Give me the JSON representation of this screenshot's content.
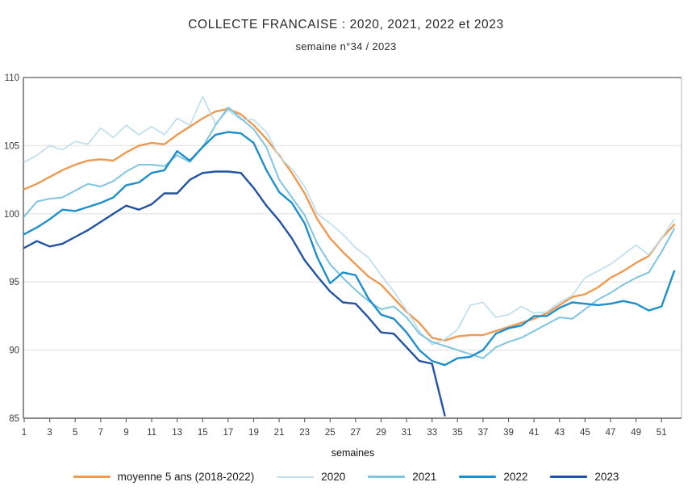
{
  "title": "COLLECTE FRANCAISE : 2020, 2021, 2022 et 2023",
  "subtitle": "semaine n°34 / 2023",
  "colors": {
    "grid": "#e7e7e5",
    "frame_dark": "#606060",
    "frame_light": "#b5b5b3",
    "axis_text": "#3c3c3c",
    "xlabel_text": "#111111"
  },
  "chart_data": {
    "type": "line",
    "title": "COLLECTE FRANCAISE : 2020, 2021, 2022 et 2023",
    "subtitle": "semaine n°34 / 2023",
    "xlabel": "semaines",
    "ylabel": "",
    "xlim": [
      1,
      52
    ],
    "ylim": [
      85,
      110
    ],
    "y_ticks": [
      85,
      90,
      95,
      100,
      105,
      110
    ],
    "x_ticks": [
      1,
      3,
      5,
      7,
      9,
      11,
      13,
      15,
      17,
      19,
      21,
      23,
      25,
      27,
      29,
      31,
      33,
      35,
      37,
      39,
      41,
      43,
      45,
      47,
      49,
      51
    ],
    "grid": true,
    "legend_position": "bottom",
    "series": [
      {
        "name": "moyenne 5 ans (2018-2022)",
        "color": "#ED9B52",
        "width": 2.4,
        "values": [
          101.8,
          102.2,
          102.7,
          103.2,
          103.6,
          103.9,
          104.0,
          103.9,
          104.5,
          105.0,
          105.2,
          105.1,
          105.8,
          106.4,
          107.0,
          107.5,
          107.7,
          107.3,
          106.5,
          105.5,
          104.3,
          103.0,
          101.5,
          99.6,
          98.2,
          97.2,
          96.3,
          95.4,
          94.8,
          93.8,
          92.8,
          92.0,
          90.9,
          90.7,
          91.0,
          91.1,
          91.1,
          91.4,
          91.7,
          92.0,
          92.3,
          92.7,
          93.3,
          93.9,
          94.1,
          94.6,
          95.3,
          95.8,
          96.4,
          96.9,
          98.2,
          99.2
        ]
      },
      {
        "name": "2020",
        "color": "#BFDEED",
        "width": 1.7,
        "values": [
          103.8,
          104.3,
          105.0,
          104.7,
          105.3,
          105.1,
          106.3,
          105.6,
          106.5,
          105.8,
          106.4,
          105.8,
          107.0,
          106.5,
          108.6,
          106.6,
          107.6,
          106.9,
          106.9,
          106.0,
          104.2,
          103.3,
          102.0,
          100.0,
          99.3,
          98.5,
          97.5,
          96.8,
          95.5,
          94.3,
          92.9,
          91.4,
          90.4,
          90.8,
          91.5,
          93.3,
          93.5,
          92.4,
          92.6,
          93.2,
          92.7,
          92.8,
          93.5,
          94.0,
          95.3,
          95.8,
          96.3,
          97.0,
          97.7,
          97.0,
          98.2,
          99.6
        ]
      },
      {
        "name": "2021",
        "color": "#7FC4E1",
        "width": 2.0,
        "values": [
          99.8,
          100.9,
          101.1,
          101.2,
          101.7,
          102.2,
          102.0,
          102.4,
          103.1,
          103.6,
          103.6,
          103.5,
          104.3,
          103.8,
          104.9,
          106.5,
          107.8,
          107.0,
          106.2,
          104.9,
          102.5,
          101.2,
          99.9,
          97.8,
          96.3,
          95.3,
          94.4,
          93.6,
          93.0,
          93.2,
          92.4,
          91.2,
          90.6,
          90.3,
          90.0,
          89.7,
          89.4,
          90.2,
          90.6,
          90.9,
          91.4,
          91.9,
          92.4,
          92.3,
          93.0,
          93.7,
          94.2,
          94.8,
          95.3,
          95.7,
          97.2,
          98.9
        ]
      },
      {
        "name": "2022",
        "color": "#1E8FCB",
        "width": 2.4,
        "values": [
          98.5,
          99.0,
          99.6,
          100.3,
          100.2,
          100.5,
          100.8,
          101.2,
          102.1,
          102.3,
          103.0,
          103.2,
          104.6,
          103.9,
          104.9,
          105.8,
          106.0,
          105.9,
          105.2,
          103.2,
          101.6,
          100.8,
          99.3,
          96.8,
          94.9,
          95.7,
          95.5,
          93.8,
          92.6,
          92.3,
          91.3,
          90.0,
          89.2,
          88.9,
          89.4,
          89.5,
          90.0,
          91.2,
          91.6,
          91.8,
          92.5,
          92.5,
          93.1,
          93.5,
          93.4,
          93.3,
          93.4,
          93.6,
          93.4,
          92.9,
          93.2,
          95.8
        ]
      },
      {
        "name": "2023",
        "color": "#2253A2",
        "width": 2.4,
        "values": [
          97.5,
          98.0,
          97.6,
          97.8,
          98.3,
          98.8,
          99.4,
          100.0,
          100.6,
          100.3,
          100.7,
          101.5,
          101.5,
          102.5,
          103.0,
          103.1,
          103.1,
          103.0,
          101.9,
          100.6,
          99.5,
          98.2,
          96.6,
          95.4,
          94.3,
          93.5,
          93.4,
          92.4,
          91.3,
          91.2,
          90.2,
          89.2,
          89.0,
          85.2
        ]
      }
    ]
  }
}
